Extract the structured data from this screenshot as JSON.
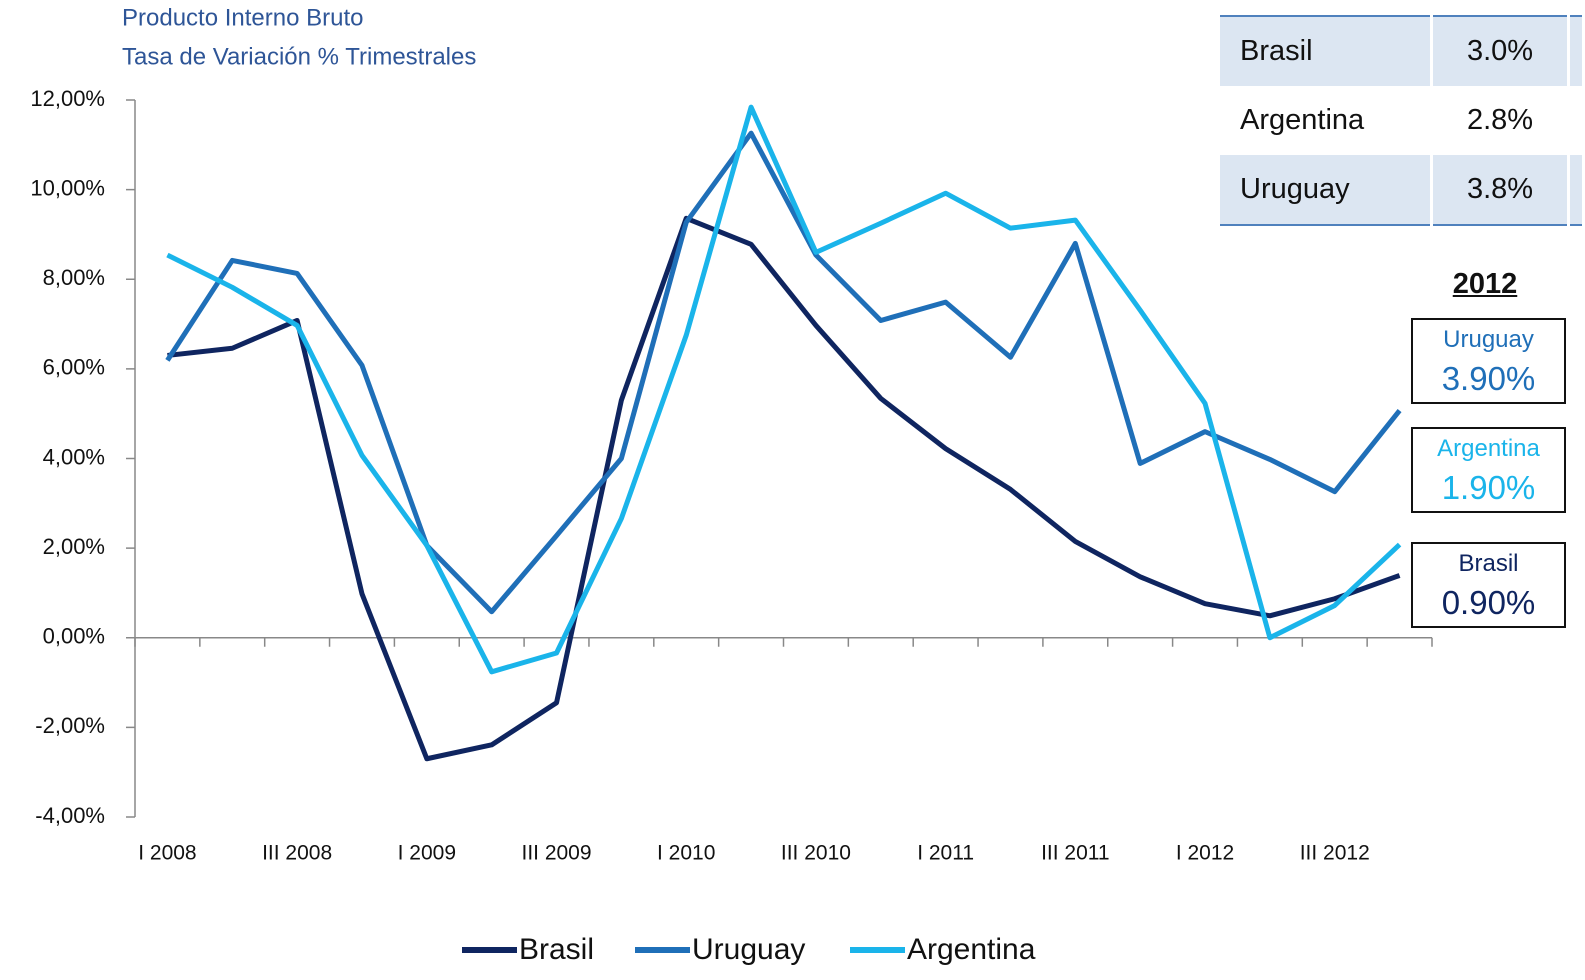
{
  "chart_data": {
    "type": "line",
    "title": "Producto Interno Bruto",
    "subtitle": "Tasa de Variación %  Trimestrales",
    "categories": [
      "I 2008",
      null,
      "III 2008",
      null,
      "I 2009",
      null,
      "III 2009",
      null,
      "I 2010",
      null,
      "III 2010",
      null,
      "I 2011",
      null,
      "III 2011",
      null,
      "I 2012",
      null,
      "III 2012",
      null
    ],
    "series": [
      {
        "name": "Brasil",
        "color": "#0f2560",
        "values": [
          6.3,
          6.46,
          7.08,
          0.98,
          -2.7,
          -2.39,
          -1.45,
          5.3,
          9.36,
          8.78,
          6.97,
          5.34,
          4.22,
          3.31,
          2.15,
          1.36,
          0.76,
          0.49,
          0.87,
          1.39
        ]
      },
      {
        "name": "Uruguay",
        "color": "#1f6fb8",
        "values": [
          6.19,
          8.42,
          8.13,
          6.08,
          2.06,
          0.58,
          2.28,
          4.0,
          9.27,
          11.26,
          8.54,
          7.08,
          7.49,
          6.26,
          8.8,
          3.89,
          4.6,
          3.98,
          3.26,
          5.07
        ]
      },
      {
        "name": "Argentina",
        "color": "#1ab4ea",
        "values": [
          8.54,
          7.82,
          6.97,
          4.07,
          2.06,
          -0.76,
          -0.34,
          2.66,
          6.75,
          11.84,
          8.6,
          9.25,
          9.92,
          9.14,
          9.32,
          7.31,
          5.23,
          0.0,
          0.72,
          2.08
        ]
      }
    ],
    "ylim": [
      -4,
      12
    ],
    "yticks": [
      {
        "value": -4,
        "label": "-4,00%"
      },
      {
        "value": -2,
        "label": "-2,00%"
      },
      {
        "value": 0,
        "label": "0,00%"
      },
      {
        "value": 2,
        "label": "2,00%"
      },
      {
        "value": 4,
        "label": "4,00%"
      },
      {
        "value": 6,
        "label": "6,00%"
      },
      {
        "value": 8,
        "label": "8,00%"
      },
      {
        "value": 10,
        "label": "10,00%"
      },
      {
        "value": 12,
        "label": "12,00%"
      }
    ],
    "grid": false,
    "legend": "bottom"
  },
  "table": {
    "rows": [
      [
        "Brasil",
        "3.0%"
      ],
      [
        "Argentina",
        "2.8%"
      ],
      [
        "Uruguay",
        "3.8%"
      ]
    ]
  },
  "year_boxes": {
    "title": "2012",
    "boxes": [
      {
        "name": "Uruguay",
        "value": "3.90%",
        "color": "#1f6fb8"
      },
      {
        "name": "Argentina",
        "value": "1.90%",
        "color": "#1ab4ea"
      },
      {
        "name": "Brasil",
        "value": "0.90%",
        "color": "#0f2560"
      }
    ]
  }
}
